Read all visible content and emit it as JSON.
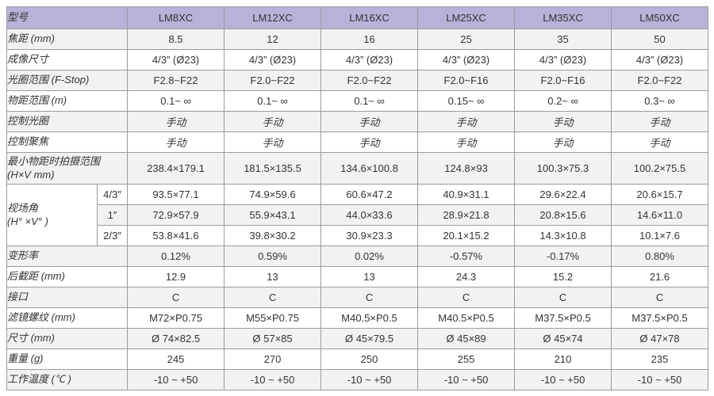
{
  "colors": {
    "header_bg": "#b9b1d8",
    "row_shade": "#f2f2f2",
    "row_plain": "#ffffff",
    "border": "#9c9c9c",
    "text": "#333333"
  },
  "table": {
    "header": {
      "corner_label": "型号",
      "models": [
        "LM8XC",
        "LM12XC",
        "LM16XC",
        "LM25XC",
        "LM35XC",
        "LM50XC"
      ]
    },
    "rows": [
      {
        "key": "focal-length",
        "type": "simple",
        "label": "焦距 (mm)",
        "shade": true,
        "values": [
          "8.5",
          "12",
          "16",
          "25",
          "35",
          "50"
        ]
      },
      {
        "key": "image-size",
        "type": "simple",
        "label": "成像尺寸",
        "shade": false,
        "values": [
          "4/3” (Ø23)",
          "4/3” (Ø23)",
          "4/3” (Ø23)",
          "4/3” (Ø23)",
          "4/3” (Ø23)",
          "4/3” (Ø23)"
        ]
      },
      {
        "key": "f-stop-range",
        "type": "simple",
        "label": "光圈范围 (F-Stop)",
        "shade": true,
        "values": [
          "F2.8~F22",
          "F2.0~F22",
          "F2.0~F22",
          "F2.0~F16",
          "F2.0~F16",
          "F2.0~F22"
        ]
      },
      {
        "key": "object-distance-range",
        "type": "simple",
        "label": "物距范围 (m)",
        "shade": false,
        "values": [
          "0.1~ ∞",
          "0.1~ ∞",
          "0.1~ ∞",
          "0.15~ ∞",
          "0.2~ ∞",
          "0.3~ ∞"
        ]
      },
      {
        "key": "iris-control",
        "type": "simple",
        "label": "控制光圈",
        "shade": true,
        "cjk": true,
        "values": [
          "手动",
          "手动",
          "手动",
          "手动",
          "手动",
          "手动"
        ]
      },
      {
        "key": "focus-control",
        "type": "simple",
        "label": "控制聚焦",
        "shade": false,
        "cjk": true,
        "values": [
          "手动",
          "手动",
          "手动",
          "手动",
          "手动",
          "手动"
        ]
      },
      {
        "key": "min-object-shooting-range",
        "type": "simple",
        "tall": true,
        "shade": true,
        "label_lines": [
          "最小物距时拍摄范围",
          "(H×V mm)"
        ],
        "values": [
          "238.4×179.1",
          "181.5×135.5",
          "134.6×100.8",
          "124.8×93",
          "100.3×75.3",
          "100.2×75.5"
        ]
      },
      {
        "key": "fov-4-3",
        "type": "group-start",
        "shade": false,
        "sub": "4/3″",
        "group_label_lines": [
          "视场角",
          "(H°  ×V°  )"
        ],
        "values": [
          "93.5×77.1",
          "74.9×59.6",
          "60.6×47.2",
          "40.9×31.1",
          "29.6×22.4",
          "20.6×15.7"
        ]
      },
      {
        "key": "fov-1",
        "type": "group-sub",
        "shade": true,
        "sub": "1″",
        "values": [
          "72.9×57.9",
          "55.9×43.1",
          "44.0×33.6",
          "28.9×21.8",
          "20.8×15.6",
          "14.6×11.0"
        ]
      },
      {
        "key": "fov-2-3",
        "type": "group-sub",
        "shade": false,
        "sub": "2/3″",
        "values": [
          "53.8×41.6",
          "39.8×30.2",
          "30.9×23.3",
          "20.1×15.2",
          "14.3×10.8",
          "10.1×7.6"
        ]
      },
      {
        "key": "distortion",
        "type": "simple",
        "label": "变形率",
        "shade": true,
        "values": [
          "0.12%",
          "0.59%",
          "0.02%",
          "-0.57%",
          "-0.17%",
          "0.80%"
        ]
      },
      {
        "key": "back-focal-distance",
        "type": "simple",
        "label": "后截距 (mm)",
        "shade": false,
        "values": [
          "12.9",
          "13",
          "13",
          "24.3",
          "15.2",
          "21.6"
        ]
      },
      {
        "key": "mount",
        "type": "simple",
        "label": "接口",
        "shade": true,
        "values": [
          "C",
          "C",
          "C",
          "C",
          "C",
          "C"
        ]
      },
      {
        "key": "filter-thread",
        "type": "simple",
        "label": "滤镜螺纹 (mm)",
        "shade": false,
        "values": [
          "M72×P0.75",
          "M55×P0.75",
          "M40.5×P0.5",
          "M40.5×P0.5",
          "M37.5×P0.5",
          "M37.5×P0.5"
        ]
      },
      {
        "key": "dimensions",
        "type": "simple",
        "label": "尺寸 (mm)",
        "shade": true,
        "values": [
          "Ø 74×82.5",
          "Ø 57×85",
          "Ø 45×79.5",
          "Ø 45×89",
          "Ø 45×74",
          "Ø 47×78"
        ]
      },
      {
        "key": "weight",
        "type": "simple",
        "label": "重量 (g)",
        "shade": false,
        "values": [
          "245",
          "270",
          "250",
          "255",
          "210",
          "235"
        ]
      },
      {
        "key": "operating-temperature",
        "type": "simple",
        "label": "工作温度 (℃ )",
        "shade": true,
        "values": [
          "-10 ~ +50",
          "-10 ~ +50",
          "-10 ~ +50",
          "-10 ~ +50",
          "-10 ~ +50",
          "-10 ~ +50"
        ]
      }
    ]
  }
}
